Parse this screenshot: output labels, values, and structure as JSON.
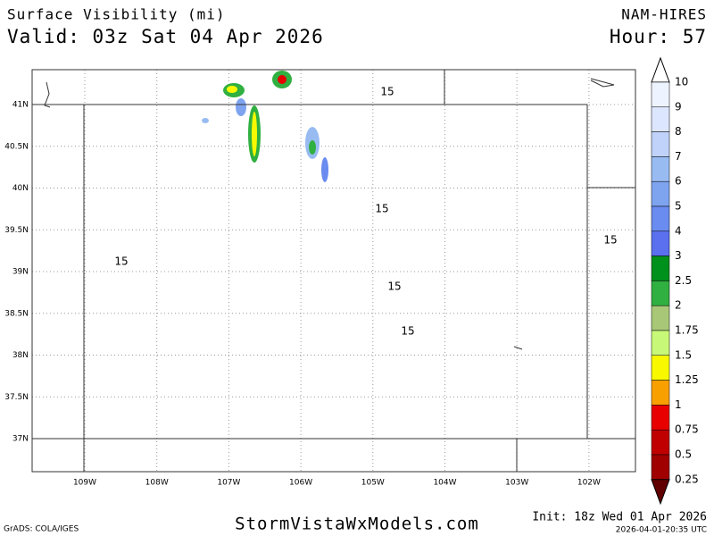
{
  "header": {
    "title": "Surface Visibility (mi)",
    "valid": "Valid: 03z Sat 04 Apr 2026",
    "model": "NAM-HIRES",
    "hour": "Hour: 57"
  },
  "map": {
    "lon_labels": [
      "109W",
      "108W",
      "107W",
      "106W",
      "105W",
      "104W",
      "103W",
      "102W"
    ],
    "lat_labels": [
      "41N",
      "40.5N",
      "40N",
      "39.5N",
      "39N",
      "38.5N",
      "38N",
      "37.5N",
      "37N"
    ],
    "contour_labels": [
      "15",
      "15",
      "15",
      "15",
      "15",
      "15"
    ]
  },
  "colorbar": {
    "labels": [
      10,
      9,
      8,
      7,
      6,
      5,
      4,
      3,
      2.5,
      2,
      1.75,
      1.5,
      1.25,
      1,
      0.75,
      0.5,
      0.25
    ],
    "colors": [
      "#ffffff",
      "#eef4ff",
      "#dce6ff",
      "#c0d2fa",
      "#98bcf2",
      "#7ea4f0",
      "#6a8cf0",
      "#5a70ee",
      "#00901c",
      "#30b040",
      "#a8c878",
      "#c8f878",
      "#f8f800",
      "#f8a000",
      "#e80000",
      "#c00000",
      "#a00000",
      "#600000"
    ]
  },
  "footer": {
    "credit": "GrADS: COLA/IGES",
    "site": "StormVistaWxModels.com",
    "init": "Init: 18z Wed 01 Apr 2026",
    "stamp": "2026-04-01-20:35 UTC"
  }
}
